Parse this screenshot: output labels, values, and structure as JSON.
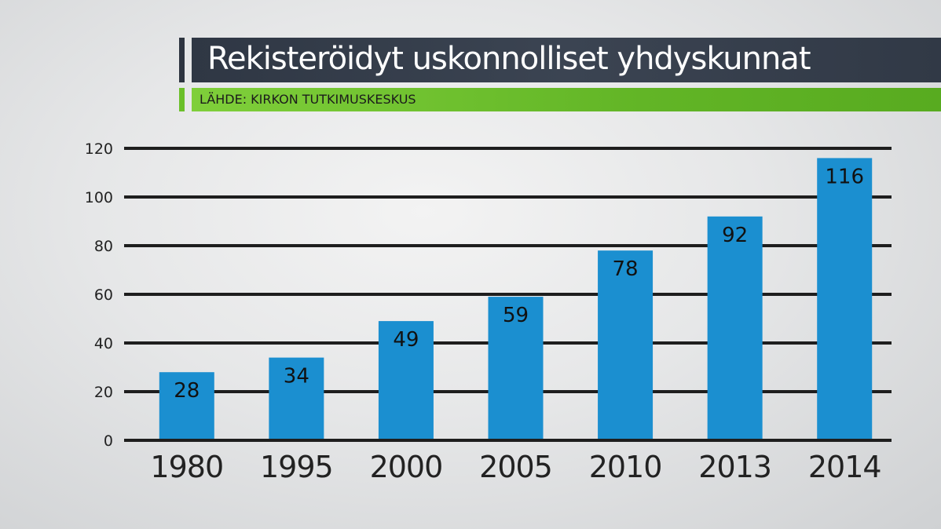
{
  "header": {
    "title": "Rekisteröidyt uskonnolliset yhdyskunnat",
    "source": "LÄHDE: KIRKON TUTKIMUSKESKUS"
  },
  "colors": {
    "bar": "#1b8fd0",
    "gridline": "#1e1e1e",
    "title_background": "#343c49",
    "source_background": "#6cc02e"
  },
  "chart_data": {
    "type": "bar",
    "title": "Rekisteröidyt uskonnolliset yhdyskunnat",
    "xlabel": "",
    "ylabel": "",
    "categories": [
      "1980",
      "1995",
      "2000",
      "2005",
      "2010",
      "2013",
      "2014"
    ],
    "values": [
      28,
      34,
      49,
      59,
      78,
      92,
      116
    ],
    "ylim": [
      0,
      120
    ],
    "yticks": [
      0,
      20,
      40,
      60,
      80,
      100,
      120
    ],
    "grid": true,
    "legend": "none"
  }
}
